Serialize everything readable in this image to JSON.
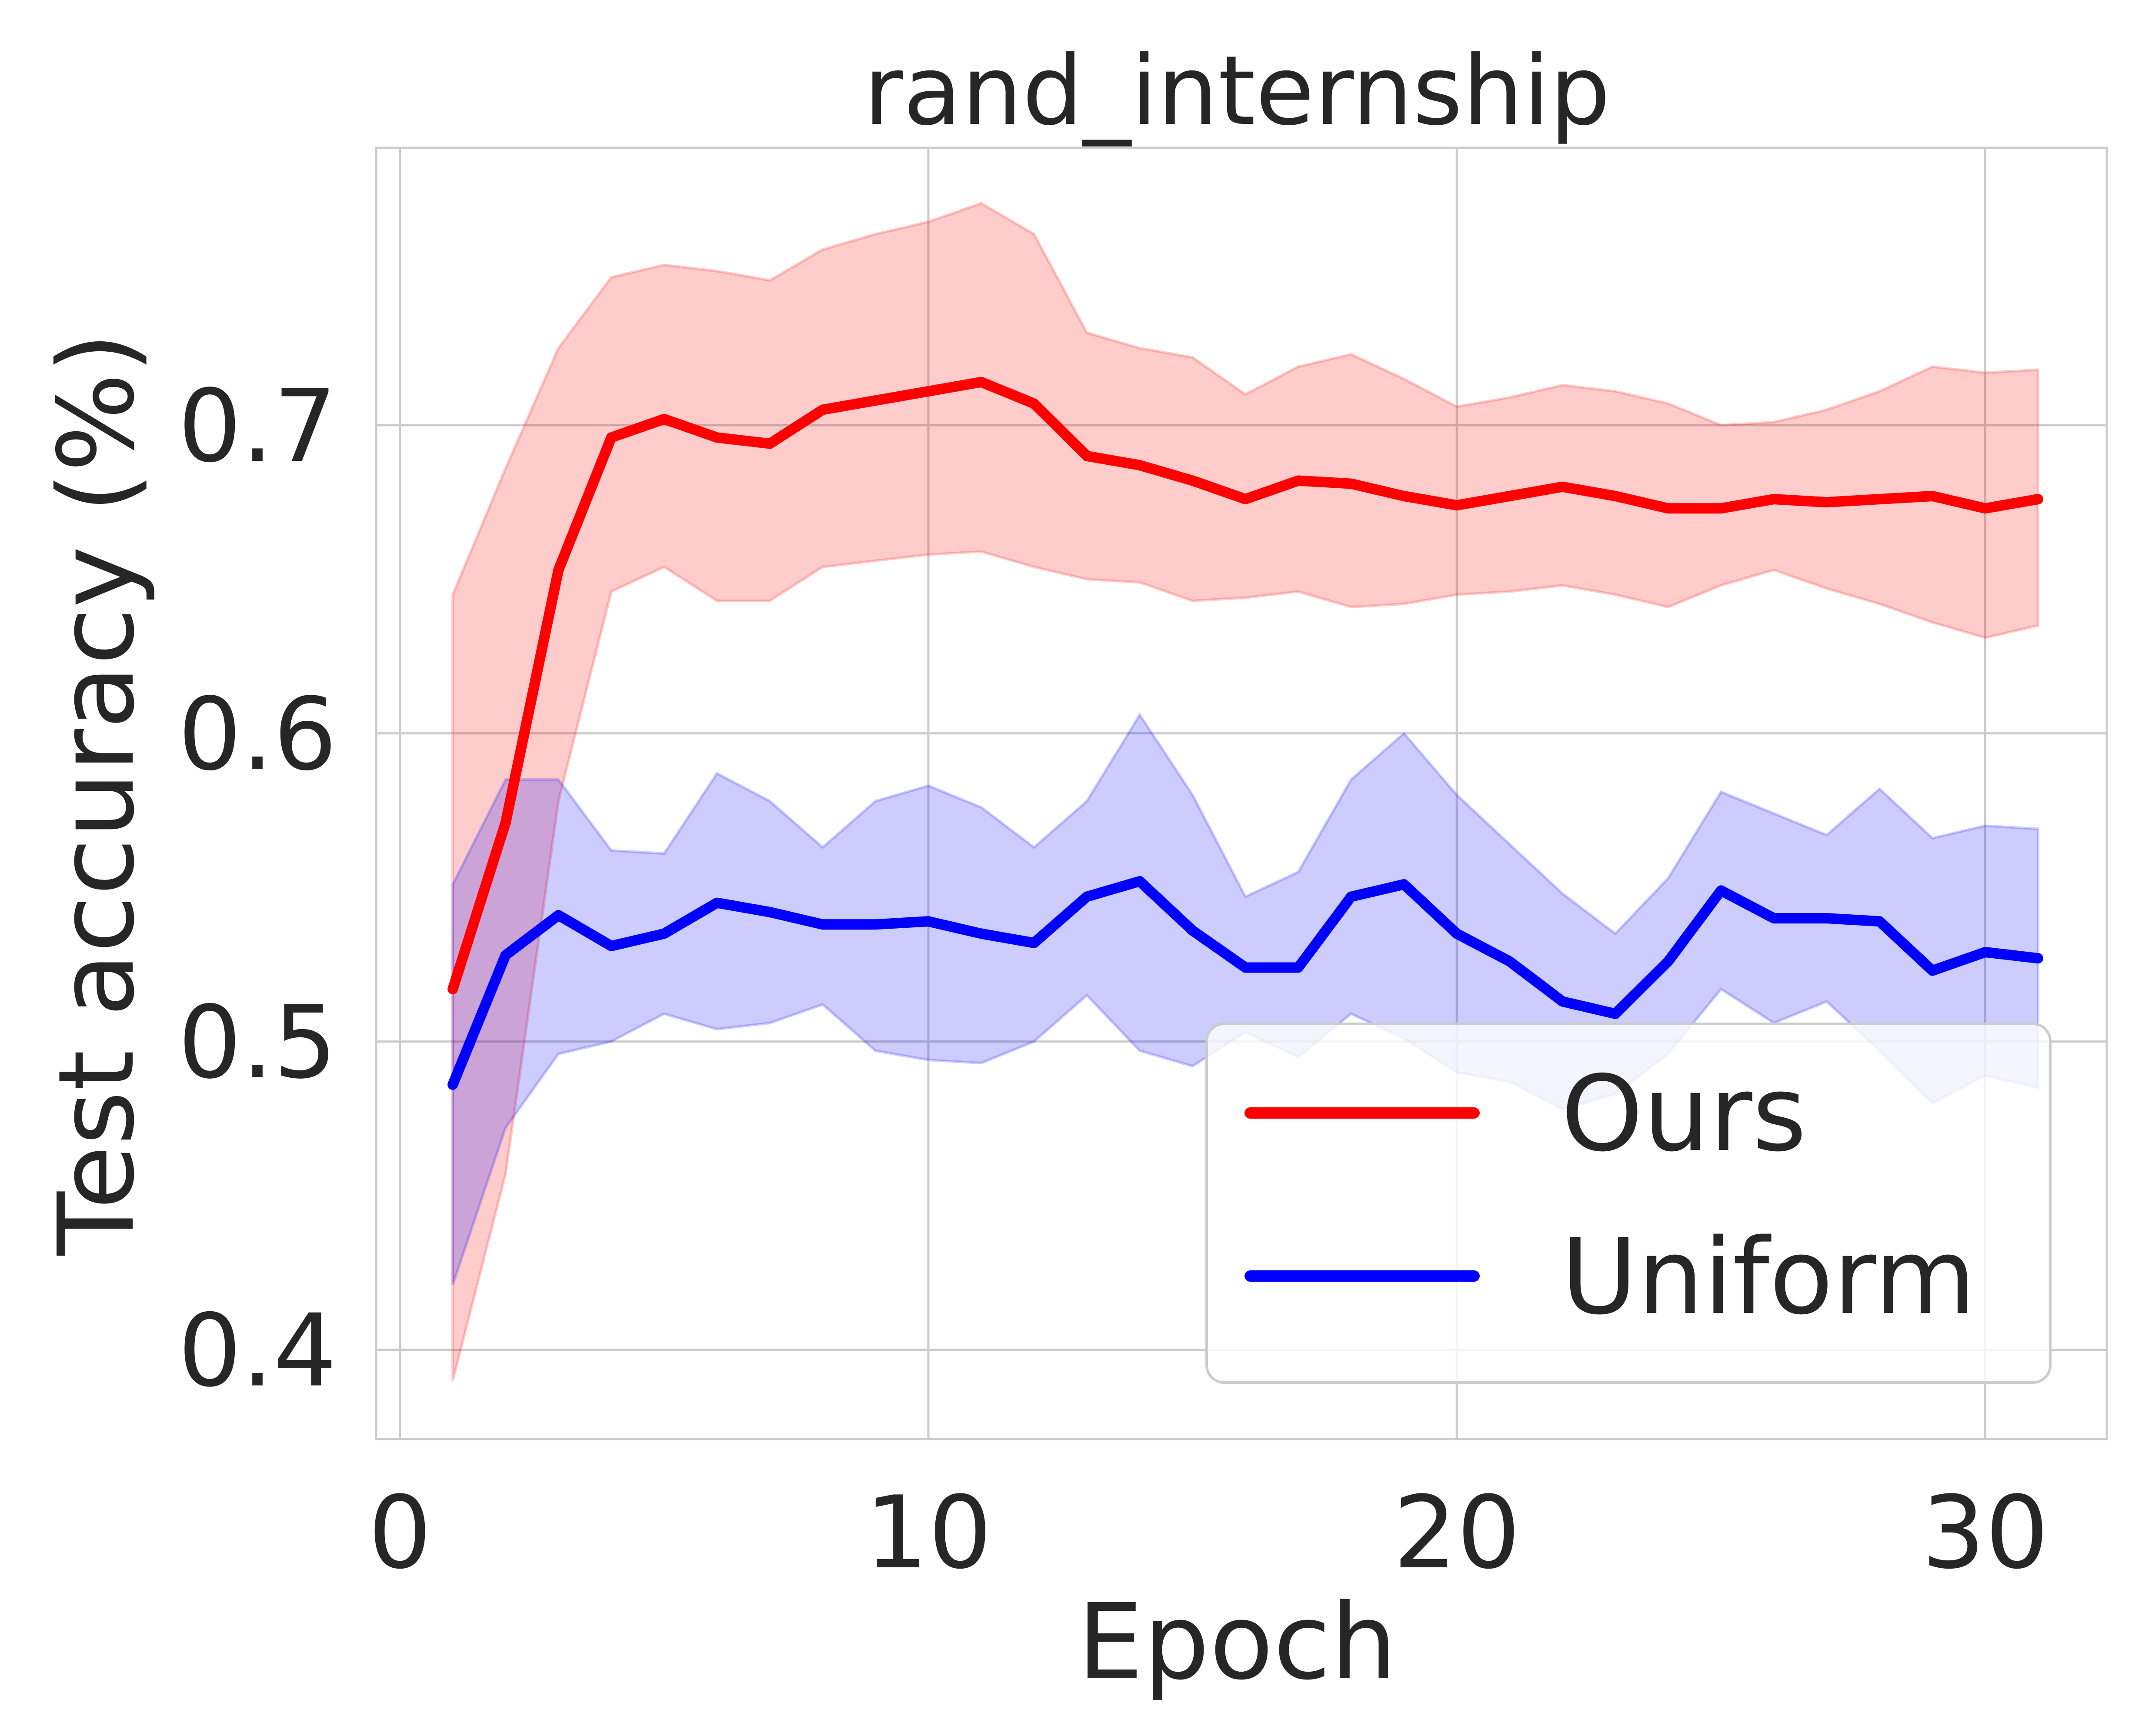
{
  "chart_data": {
    "type": "line",
    "title": "rand_internship",
    "xlabel": "Epoch",
    "ylabel": "Test accuracy (%)",
    "xlim": [
      -0.45,
      32.3
    ],
    "ylim": [
      0.371,
      0.79
    ],
    "xticks": [
      0,
      10,
      20,
      30
    ],
    "yticks": [
      0.4,
      0.5,
      0.6,
      0.7
    ],
    "xtick_labels": [
      "0",
      "10",
      "20",
      "30"
    ],
    "ytick_labels": [
      "0.4",
      "0.5",
      "0.6",
      "0.7"
    ],
    "grid": true,
    "legend_position": "lower-right",
    "x": [
      1,
      2,
      3,
      4,
      5,
      6,
      7,
      8,
      9,
      10,
      11,
      12,
      13,
      14,
      15,
      16,
      17,
      18,
      19,
      20,
      21,
      22,
      23,
      24,
      25,
      26,
      27,
      28,
      29,
      30,
      31
    ],
    "series": [
      {
        "name": "Ours",
        "color": "#ff0000",
        "band_color": "#ff0000",
        "values": [
          0.517,
          0.571,
          0.653,
          0.696,
          0.702,
          0.696,
          0.694,
          0.705,
          0.708,
          0.711,
          0.714,
          0.707,
          0.69,
          0.687,
          0.682,
          0.676,
          0.682,
          0.681,
          0.677,
          0.674,
          0.677,
          0.68,
          0.677,
          0.673,
          0.673,
          0.676,
          0.675,
          0.676,
          0.677,
          0.673,
          0.676
        ],
        "lower": [
          0.39,
          0.457,
          0.578,
          0.646,
          0.654,
          0.643,
          0.643,
          0.654,
          0.656,
          0.658,
          0.659,
          0.654,
          0.65,
          0.649,
          0.643,
          0.644,
          0.646,
          0.641,
          0.642,
          0.645,
          0.646,
          0.648,
          0.645,
          0.641,
          0.648,
          0.653,
          0.647,
          0.642,
          0.636,
          0.631,
          0.635
        ],
        "upper": [
          0.645,
          0.686,
          0.725,
          0.748,
          0.752,
          0.75,
          0.747,
          0.757,
          0.762,
          0.766,
          0.772,
          0.762,
          0.73,
          0.725,
          0.722,
          0.71,
          0.719,
          0.723,
          0.715,
          0.706,
          0.709,
          0.713,
          0.711,
          0.707,
          0.7,
          0.701,
          0.705,
          0.711,
          0.719,
          0.717,
          0.718
        ]
      },
      {
        "name": "Uniform",
        "color": "#0000ff",
        "band_color": "#0000ff",
        "values": [
          0.486,
          0.528,
          0.541,
          0.531,
          0.535,
          0.545,
          0.542,
          0.538,
          0.538,
          0.539,
          0.535,
          0.532,
          0.547,
          0.552,
          0.536,
          0.524,
          0.524,
          0.547,
          0.551,
          0.535,
          0.526,
          0.513,
          0.509,
          0.526,
          0.549,
          0.54,
          0.54,
          0.539,
          0.523,
          0.529,
          0.527
        ],
        "lower": [
          0.421,
          0.472,
          0.496,
          0.5,
          0.509,
          0.504,
          0.506,
          0.512,
          0.497,
          0.494,
          0.493,
          0.5,
          0.515,
          0.497,
          0.492,
          0.503,
          0.495,
          0.509,
          0.501,
          0.49,
          0.487,
          0.478,
          0.483,
          0.496,
          0.517,
          0.506,
          0.513,
          0.497,
          0.48,
          0.489,
          0.485
        ],
        "upper": [
          0.551,
          0.585,
          0.585,
          0.562,
          0.561,
          0.587,
          0.578,
          0.563,
          0.578,
          0.583,
          0.576,
          0.563,
          0.578,
          0.606,
          0.58,
          0.547,
          0.555,
          0.585,
          0.6,
          0.58,
          0.564,
          0.548,
          0.535,
          0.553,
          0.581,
          0.574,
          0.567,
          0.582,
          0.566,
          0.57,
          0.569
        ]
      }
    ]
  }
}
